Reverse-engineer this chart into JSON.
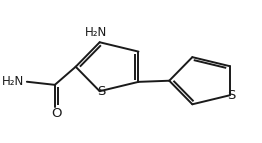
{
  "bg_color": "#ffffff",
  "line_color": "#1a1a1a",
  "line_width": 1.4,
  "font_size": 8.5,
  "xlim": [
    0,
    10
  ],
  "ylim": [
    0,
    7.5
  ],
  "figsize": [
    2.62,
    1.43
  ],
  "dpi": 100
}
